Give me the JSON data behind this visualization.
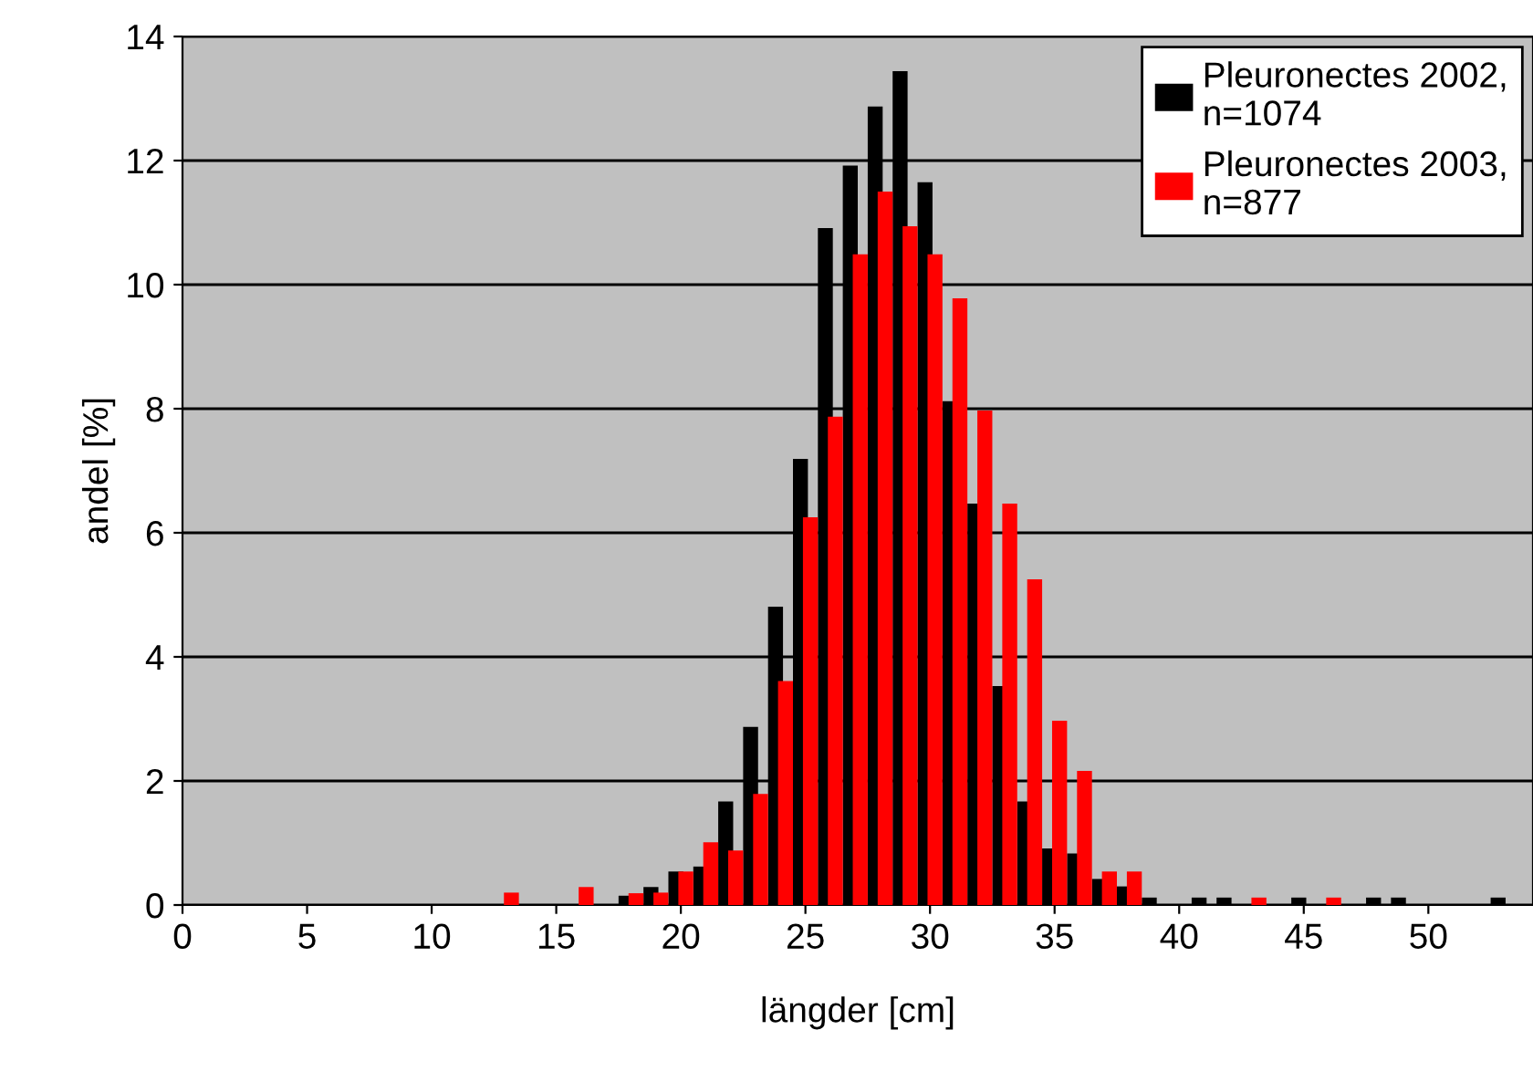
{
  "chart_data": {
    "type": "bar",
    "xlabel": "längder [cm]",
    "ylabel": "andel [%]",
    "series": [
      {
        "name": "Pleuronectes 2002,\nn=1074",
        "color": "#000000",
        "x": [
          18,
          19,
          20,
          21,
          22,
          23,
          24,
          25,
          26,
          27,
          28,
          29,
          30,
          31,
          32,
          33,
          34,
          35,
          36,
          37,
          38,
          39,
          41,
          42,
          45,
          48,
          49,
          53
        ],
        "values": [
          0.15,
          0.29,
          0.54,
          0.62,
          1.67,
          2.87,
          4.81,
          7.19,
          10.91,
          11.92,
          12.87,
          13.44,
          11.65,
          8.12,
          6.47,
          3.53,
          1.67,
          0.91,
          0.83,
          0.42,
          0.3,
          0.12,
          0.12,
          0.12,
          0.12,
          0.12,
          0.12,
          0.12
        ]
      },
      {
        "name": "Pleuronectes 2003,\nn=877",
        "color": "#ff0000",
        "x": [
          13,
          16,
          18,
          19,
          20,
          21,
          22,
          23,
          24,
          25,
          26,
          27,
          28,
          29,
          30,
          31,
          32,
          33,
          34,
          35,
          36,
          37,
          38,
          43,
          46
        ],
        "values": [
          0.2,
          0.29,
          0.19,
          0.2,
          0.54,
          1.01,
          0.88,
          1.79,
          3.61,
          6.25,
          7.87,
          10.49,
          11.5,
          10.94,
          10.49,
          9.78,
          7.97,
          6.47,
          5.25,
          2.97,
          2.16,
          0.54,
          0.54,
          0.12,
          0.12
        ]
      }
    ],
    "xlim": [
      0,
      54.2
    ],
    "xticks": [
      0,
      5,
      10,
      15,
      20,
      25,
      30,
      35,
      40,
      45,
      50
    ],
    "ylim": [
      0,
      14
    ],
    "yticks": [
      0,
      2,
      4,
      6,
      8,
      10,
      12,
      14
    ],
    "grid": "y",
    "legend": "top right"
  }
}
